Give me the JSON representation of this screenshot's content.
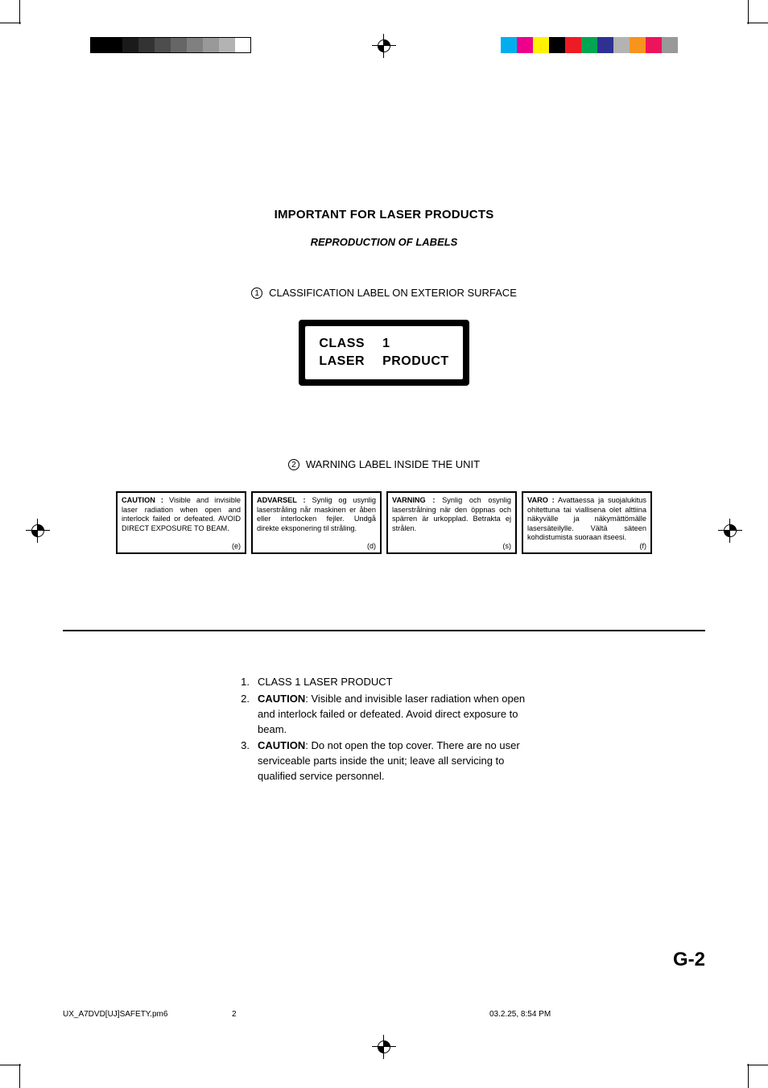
{
  "print_marks": {
    "gray_swatches_left": [
      "#000000",
      "#000000",
      "#1a1a1a",
      "#333333",
      "#4d4d4d",
      "#666666",
      "#808080",
      "#999999",
      "#b3b3b3",
      "#ffffff"
    ],
    "color_swatches_right": [
      "#00aeef",
      "#ec008c",
      "#fff200",
      "#000000",
      "#ed1c24",
      "#00a651",
      "#2e3192",
      "#b3b3b3",
      "#f7941d",
      "#ed145b",
      "#999999"
    ]
  },
  "headings": {
    "title": "IMPORTANT FOR LASER PRODUCTS",
    "subtitle": "REPRODUCTION OF LABELS",
    "section1_num": "1",
    "section1": "CLASSIFICATION LABEL ON EXTERIOR SURFACE",
    "section2_num": "2",
    "section2": "WARNING LABEL INSIDE THE UNIT"
  },
  "class1_label": {
    "row1a": "CLASS",
    "row1b": "1",
    "row2a": "LASER",
    "row2b": "PRODUCT"
  },
  "warning_boxes": [
    {
      "lead": "CAUTION :",
      "body": " Visible and invisible laser radiation when open and interlock failed or defeated. AVOID DIRECT EXPOSURE TO BEAM.",
      "code": "(e)"
    },
    {
      "lead": "ADVARSEL :",
      "body": " Synlig og usynlig laserstråling når maskinen er åben eller interlocken fejler. Undgå direkte eksponering til stråling.",
      "code": "(d)"
    },
    {
      "lead": "VARNING :",
      "body": " Synlig och osynlig laserstrålning när den öppnas och spärren är urkopplad. Betrakta ej strålen.",
      "code": "(s)"
    },
    {
      "lead": "VARO :",
      "body": " Avattaessa ja suojalukitus ohitettuna tai viallisena olet alttiina näkyvälle ja näkymättömälle lasersäteilylle. Vältä säteen kohdistumista suoraan itseesi.",
      "code": "(f)"
    }
  ],
  "list": {
    "n1": "1.",
    "i1": "CLASS 1 LASER PRODUCT",
    "n2": "2.",
    "i2_lead": "CAUTION",
    "i2": ": Visible and invisible laser radiation when open and interlock failed or defeated. Avoid direct exposure to beam.",
    "n3": "3.",
    "i3_lead": "CAUTION",
    "i3": ": Do not open the top cover. There are no user serviceable parts inside the unit; leave all servicing to qualified service personnel."
  },
  "page_number": "G-2",
  "footer": {
    "file": "UX_A7DVD[UJ]SAFETY.pm6",
    "page": "2",
    "timestamp": "03.2.25, 8:54 PM"
  },
  "colors": {
    "text": "#000000",
    "background": "#ffffff"
  }
}
